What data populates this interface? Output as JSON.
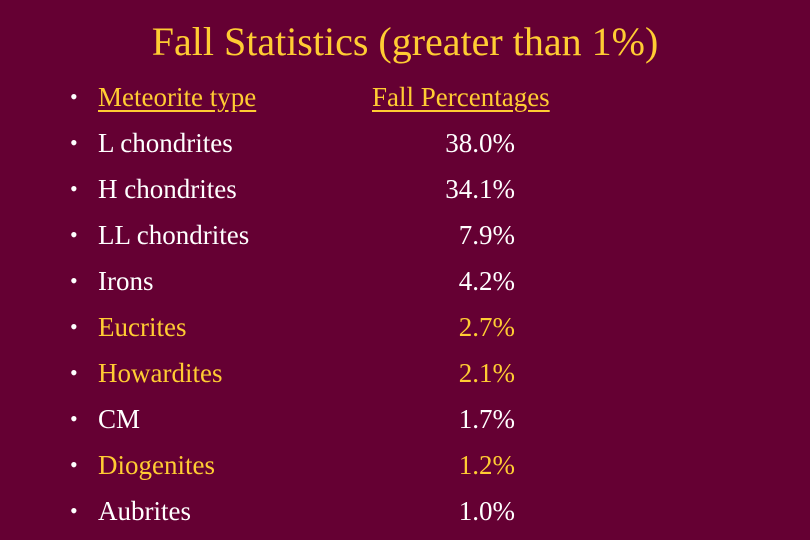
{
  "title": "Fall Statistics (greater than 1%)",
  "bullet_symbol": "•",
  "colors": {
    "background": "#650033",
    "title": "#ffcc33",
    "text": "#ffffff",
    "highlight": "#ffcc33"
  },
  "table": {
    "header": {
      "type": "Meteorite type",
      "percentage": "Fall Percentages"
    },
    "rows": [
      {
        "type": "L chondrites",
        "percentage": "38.0%",
        "highlight": false
      },
      {
        "type": "H chondrites",
        "percentage": "34.1%",
        "highlight": false
      },
      {
        "type": "LL chondrites",
        "percentage": "7.9%",
        "highlight": false
      },
      {
        "type": "Irons",
        "percentage": "4.2%",
        "highlight": false
      },
      {
        "type": "Eucrites",
        "percentage": "2.7%",
        "highlight": true
      },
      {
        "type": "Howardites",
        "percentage": "2.1%",
        "highlight": true
      },
      {
        "type": "CM",
        "percentage": "1.7%",
        "highlight": false
      },
      {
        "type": "Diogenites",
        "percentage": "1.2%",
        "highlight": true
      },
      {
        "type": "Aubrites",
        "percentage": "1.0%",
        "highlight": false
      }
    ]
  }
}
